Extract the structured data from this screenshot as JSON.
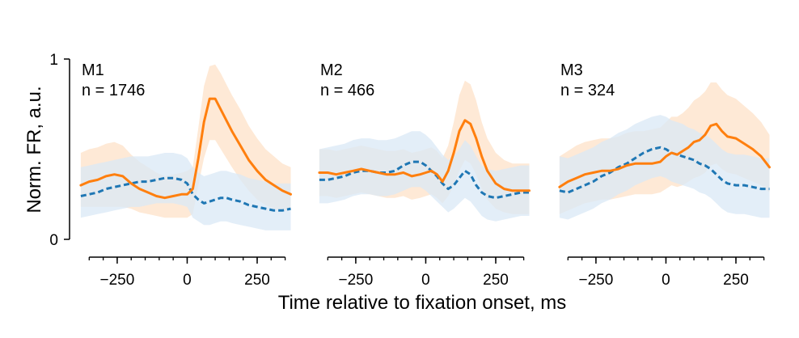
{
  "colors": {
    "orange": "#ff7f0e",
    "blue": "#1f77b4",
    "orange_band": "#fde2c8",
    "blue_band": "#d9e8f5"
  },
  "chart_data": {
    "type": "line",
    "xlabel": "Time relative to fixation onset, ms",
    "ylabel": "Norm. FR, a.u.",
    "ylim": [
      0,
      1
    ],
    "yticks": [
      {
        "value": 0,
        "label": "0"
      },
      {
        "value": 1,
        "label": "1"
      }
    ],
    "xlim": [
      -400,
      380
    ],
    "xticks": [
      {
        "value": -250,
        "label": "−250"
      },
      {
        "value": 0,
        "label": "0"
      },
      {
        "value": 250,
        "label": "250"
      }
    ],
    "xminor": [
      -350,
      -300,
      -250,
      -200,
      -150,
      -100,
      -50,
      0,
      50,
      100,
      150,
      200,
      250,
      300,
      350
    ],
    "panels": [
      {
        "label": "M1",
        "n_label": "n = 1746",
        "series": [
          {
            "style": "solid",
            "color": "#ff7f0e",
            "x": [
              -380,
              -350,
              -320,
              -290,
              -260,
              -230,
              -200,
              -170,
              -140,
              -110,
              -80,
              -50,
              -20,
              0,
              20,
              40,
              60,
              80,
              100,
              120,
              140,
              160,
              190,
              220,
              250,
              280,
              310,
              340,
              370
            ],
            "y": [
              0.3,
              0.32,
              0.33,
              0.35,
              0.36,
              0.35,
              0.31,
              0.28,
              0.26,
              0.24,
              0.23,
              0.24,
              0.25,
              0.25,
              0.28,
              0.45,
              0.65,
              0.78,
              0.78,
              0.72,
              0.66,
              0.6,
              0.52,
              0.44,
              0.38,
              0.33,
              0.3,
              0.27,
              0.25
            ],
            "lo": [
              0.18,
              0.18,
              0.18,
              0.18,
              0.18,
              0.18,
              0.17,
              0.15,
              0.14,
              0.13,
              0.12,
              0.12,
              0.12,
              0.12,
              0.14,
              0.3,
              0.45,
              0.55,
              0.55,
              0.5,
              0.45,
              0.4,
              0.33,
              0.27,
              0.22,
              0.19,
              0.17,
              0.16,
              0.16
            ],
            "hi": [
              0.48,
              0.5,
              0.51,
              0.53,
              0.54,
              0.52,
              0.47,
              0.43,
              0.4,
              0.37,
              0.35,
              0.36,
              0.37,
              0.38,
              0.4,
              0.62,
              0.85,
              0.96,
              0.97,
              0.92,
              0.86,
              0.8,
              0.72,
              0.63,
              0.56,
              0.5,
              0.46,
              0.42,
              0.4
            ]
          },
          {
            "style": "dashed",
            "color": "#1f77b4",
            "x": [
              -380,
              -350,
              -320,
              -290,
              -260,
              -230,
              -200,
              -170,
              -140,
              -110,
              -80,
              -50,
              -20,
              0,
              20,
              40,
              60,
              80,
              100,
              120,
              140,
              160,
              190,
              220,
              250,
              280,
              310,
              340,
              370
            ],
            "y": [
              0.24,
              0.25,
              0.26,
              0.28,
              0.29,
              0.3,
              0.31,
              0.32,
              0.32,
              0.33,
              0.34,
              0.34,
              0.33,
              0.31,
              0.25,
              0.22,
              0.2,
              0.21,
              0.22,
              0.23,
              0.23,
              0.22,
              0.21,
              0.19,
              0.18,
              0.17,
              0.16,
              0.16,
              0.17
            ],
            "lo": [
              0.12,
              0.13,
              0.14,
              0.15,
              0.16,
              0.17,
              0.18,
              0.18,
              0.19,
              0.2,
              0.2,
              0.2,
              0.19,
              0.18,
              0.12,
              0.1,
              0.08,
              0.08,
              0.09,
              0.1,
              0.1,
              0.09,
              0.08,
              0.07,
              0.06,
              0.05,
              0.05,
              0.05,
              0.05
            ],
            "hi": [
              0.4,
              0.41,
              0.42,
              0.43,
              0.44,
              0.45,
              0.46,
              0.46,
              0.46,
              0.47,
              0.48,
              0.48,
              0.47,
              0.45,
              0.4,
              0.37,
              0.35,
              0.36,
              0.37,
              0.38,
              0.38,
              0.37,
              0.36,
              0.34,
              0.33,
              0.32,
              0.31,
              0.31,
              0.31
            ]
          }
        ]
      },
      {
        "label": "M2",
        "n_label": "n = 466",
        "series": [
          {
            "style": "solid",
            "color": "#ff7f0e",
            "x": [
              -380,
              -350,
              -320,
              -290,
              -260,
              -230,
              -200,
              -170,
              -140,
              -110,
              -80,
              -50,
              -20,
              0,
              20,
              40,
              60,
              80,
              100,
              120,
              140,
              160,
              180,
              200,
              220,
              250,
              280,
              310,
              340,
              370
            ],
            "y": [
              0.37,
              0.37,
              0.36,
              0.37,
              0.38,
              0.39,
              0.38,
              0.37,
              0.36,
              0.36,
              0.37,
              0.35,
              0.36,
              0.37,
              0.38,
              0.36,
              0.32,
              0.38,
              0.48,
              0.6,
              0.66,
              0.64,
              0.56,
              0.46,
              0.38,
              0.31,
              0.28,
              0.27,
              0.27,
              0.27
            ],
            "lo": [
              0.24,
              0.24,
              0.23,
              0.24,
              0.25,
              0.26,
              0.25,
              0.24,
              0.23,
              0.23,
              0.24,
              0.22,
              0.23,
              0.24,
              0.25,
              0.23,
              0.2,
              0.24,
              0.3,
              0.38,
              0.44,
              0.42,
              0.36,
              0.28,
              0.22,
              0.17,
              0.15,
              0.14,
              0.14,
              0.14
            ],
            "hi": [
              0.5,
              0.5,
              0.49,
              0.5,
              0.51,
              0.52,
              0.51,
              0.5,
              0.49,
              0.49,
              0.5,
              0.48,
              0.49,
              0.5,
              0.51,
              0.49,
              0.45,
              0.52,
              0.65,
              0.8,
              0.88,
              0.86,
              0.77,
              0.65,
              0.56,
              0.48,
              0.44,
              0.42,
              0.42,
              0.42
            ]
          },
          {
            "style": "dashed",
            "color": "#1f77b4",
            "x": [
              -380,
              -350,
              -320,
              -290,
              -260,
              -230,
              -200,
              -170,
              -140,
              -110,
              -80,
              -50,
              -20,
              0,
              20,
              40,
              60,
              80,
              100,
              120,
              140,
              160,
              180,
              200,
              220,
              250,
              280,
              310,
              340,
              370
            ],
            "y": [
              0.33,
              0.33,
              0.34,
              0.35,
              0.37,
              0.38,
              0.38,
              0.37,
              0.37,
              0.38,
              0.41,
              0.43,
              0.43,
              0.41,
              0.38,
              0.35,
              0.31,
              0.28,
              0.3,
              0.34,
              0.38,
              0.36,
              0.3,
              0.26,
              0.24,
              0.23,
              0.24,
              0.25,
              0.26,
              0.26
            ],
            "lo": [
              0.2,
              0.2,
              0.21,
              0.22,
              0.24,
              0.25,
              0.25,
              0.24,
              0.24,
              0.25,
              0.27,
              0.29,
              0.29,
              0.27,
              0.24,
              0.21,
              0.18,
              0.15,
              0.17,
              0.2,
              0.23,
              0.21,
              0.17,
              0.13,
              0.11,
              0.1,
              0.11,
              0.12,
              0.13,
              0.13
            ],
            "hi": [
              0.5,
              0.51,
              0.52,
              0.53,
              0.55,
              0.56,
              0.56,
              0.55,
              0.55,
              0.56,
              0.58,
              0.6,
              0.6,
              0.58,
              0.55,
              0.51,
              0.47,
              0.44,
              0.46,
              0.5,
              0.55,
              0.52,
              0.46,
              0.41,
              0.39,
              0.38,
              0.39,
              0.4,
              0.41,
              0.41
            ]
          }
        ]
      },
      {
        "label": "M3",
        "n_label": "n = 324",
        "series": [
          {
            "style": "solid",
            "color": "#ff7f0e",
            "x": [
              -380,
              -350,
              -320,
              -290,
              -260,
              -230,
              -200,
              -170,
              -140,
              -110,
              -80,
              -50,
              -20,
              0,
              20,
              40,
              60,
              80,
              100,
              120,
              140,
              160,
              180,
              200,
              220,
              250,
              280,
              310,
              340,
              370
            ],
            "y": [
              0.29,
              0.32,
              0.34,
              0.36,
              0.37,
              0.38,
              0.38,
              0.39,
              0.41,
              0.42,
              0.42,
              0.42,
              0.43,
              0.46,
              0.48,
              0.47,
              0.49,
              0.51,
              0.54,
              0.55,
              0.58,
              0.63,
              0.64,
              0.6,
              0.57,
              0.56,
              0.53,
              0.5,
              0.46,
              0.4
            ],
            "lo": [
              0.14,
              0.16,
              0.18,
              0.2,
              0.21,
              0.22,
              0.22,
              0.23,
              0.24,
              0.25,
              0.25,
              0.25,
              0.26,
              0.28,
              0.3,
              0.29,
              0.3,
              0.32,
              0.34,
              0.35,
              0.37,
              0.41,
              0.42,
              0.39,
              0.37,
              0.36,
              0.34,
              0.32,
              0.3,
              0.26
            ],
            "hi": [
              0.46,
              0.49,
              0.52,
              0.54,
              0.55,
              0.56,
              0.56,
              0.57,
              0.59,
              0.6,
              0.6,
              0.61,
              0.62,
              0.65,
              0.68,
              0.68,
              0.7,
              0.73,
              0.77,
              0.79,
              0.82,
              0.87,
              0.87,
              0.83,
              0.8,
              0.78,
              0.74,
              0.7,
              0.65,
              0.58
            ]
          },
          {
            "style": "dashed",
            "color": "#1f77b4",
            "x": [
              -380,
              -350,
              -320,
              -290,
              -260,
              -230,
              -200,
              -170,
              -140,
              -110,
              -80,
              -50,
              -20,
              0,
              20,
              40,
              60,
              80,
              100,
              120,
              140,
              160,
              180,
              200,
              220,
              250,
              280,
              310,
              340,
              370
            ],
            "y": [
              0.27,
              0.26,
              0.28,
              0.3,
              0.32,
              0.35,
              0.37,
              0.4,
              0.42,
              0.45,
              0.48,
              0.5,
              0.51,
              0.5,
              0.48,
              0.47,
              0.46,
              0.45,
              0.44,
              0.42,
              0.41,
              0.39,
              0.36,
              0.33,
              0.31,
              0.3,
              0.3,
              0.29,
              0.28,
              0.28
            ],
            "lo": [
              0.12,
              0.11,
              0.13,
              0.15,
              0.17,
              0.2,
              0.22,
              0.25,
              0.27,
              0.3,
              0.32,
              0.34,
              0.35,
              0.34,
              0.32,
              0.31,
              0.3,
              0.29,
              0.28,
              0.26,
              0.25,
              0.23,
              0.2,
              0.17,
              0.15,
              0.14,
              0.14,
              0.13,
              0.12,
              0.12
            ],
            "hi": [
              0.46,
              0.45,
              0.47,
              0.49,
              0.51,
              0.54,
              0.56,
              0.59,
              0.61,
              0.64,
              0.66,
              0.68,
              0.69,
              0.68,
              0.66,
              0.65,
              0.64,
              0.62,
              0.61,
              0.59,
              0.58,
              0.56,
              0.53,
              0.5,
              0.48,
              0.47,
              0.47,
              0.46,
              0.45,
              0.45
            ]
          }
        ]
      }
    ]
  }
}
